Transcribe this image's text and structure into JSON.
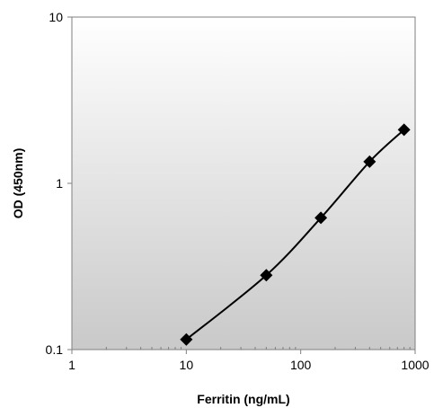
{
  "chart_data": {
    "type": "line",
    "xlabel": "Ferritin (ng/mL)",
    "ylabel": "OD (450nm)",
    "x_scale": "log",
    "y_scale": "log",
    "xlim": [
      1,
      1000
    ],
    "ylim": [
      0.1,
      10
    ],
    "x_ticks": [
      {
        "value": 1,
        "label": "1"
      },
      {
        "value": 10,
        "label": "10"
      },
      {
        "value": 100,
        "label": "100"
      },
      {
        "value": 1000,
        "label": "1000"
      }
    ],
    "y_ticks": [
      {
        "value": 0.1,
        "label": "0.1"
      },
      {
        "value": 1,
        "label": "1"
      },
      {
        "value": 10,
        "label": "10"
      }
    ],
    "grid": false,
    "marker": "diamond",
    "line_color": "#000000",
    "marker_color": "#000000",
    "plot_background": "gradient-white-to-gray",
    "series": [
      {
        "x": [
          10,
          50,
          150,
          400,
          800
        ],
        "y": [
          0.115,
          0.28,
          0.62,
          1.35,
          2.1
        ]
      }
    ]
  }
}
